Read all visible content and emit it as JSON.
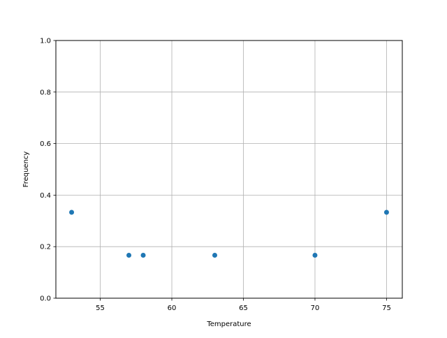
{
  "chart_data": {
    "type": "scatter",
    "title": "",
    "xlabel": "Temperature",
    "ylabel": "Frequency",
    "xlim": [
      51.9,
      76.1
    ],
    "ylim": [
      0,
      1
    ],
    "xticks": [
      55,
      60,
      65,
      70,
      75
    ],
    "xtick_labels": [
      "55",
      "60",
      "65",
      "70",
      "75"
    ],
    "yticks": [
      0,
      0.2,
      0.4,
      0.6,
      0.8,
      1.0
    ],
    "ytick_labels": [
      "0.0",
      "0.2",
      "0.4",
      "0.6",
      "0.8",
      "1.0"
    ],
    "grid": true,
    "points": [
      {
        "x": 53,
        "y": 0.3333
      },
      {
        "x": 57,
        "y": 0.1667
      },
      {
        "x": 58,
        "y": 0.1667
      },
      {
        "x": 63,
        "y": 0.1667
      },
      {
        "x": 70,
        "y": 0.1667
      },
      {
        "x": 75,
        "y": 0.3333
      }
    ],
    "marker_color": "#1f77b4"
  }
}
